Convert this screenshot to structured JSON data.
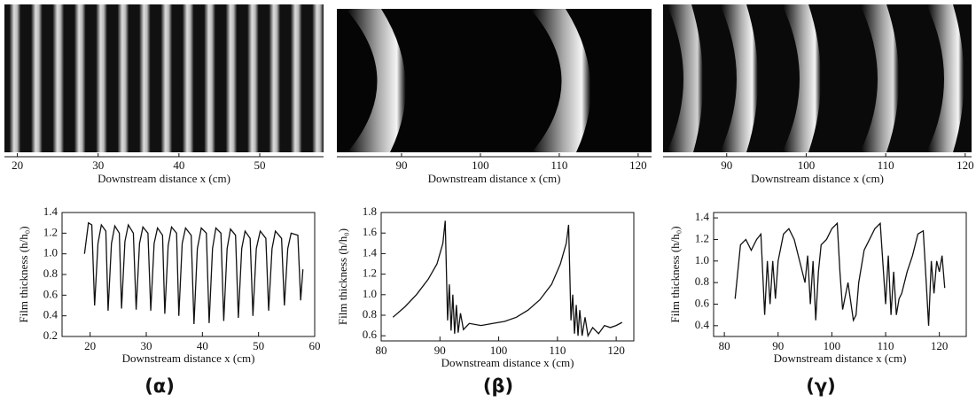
{
  "chart_data": [
    {
      "type": "image",
      "xlabel": "Downstream distance  x (cm)",
      "xlim": [
        18.4,
        57.9
      ],
      "xticks": [
        20,
        30,
        40,
        50
      ]
    },
    {
      "type": "image",
      "xlabel": "Downstream distance  x (cm)",
      "xlim": [
        81.8,
        121.7
      ],
      "xticks": [
        90,
        100,
        110,
        120
      ]
    },
    {
      "type": "image",
      "xlabel": "Downstream distance  x (cm)",
      "xlim": [
        82,
        120.8
      ],
      "xticks": [
        90,
        100,
        110,
        120
      ]
    },
    {
      "type": "line",
      "xlabel": "Downstream distance  x (cm)",
      "ylabel": "Film thickness (h/h₀)",
      "color": "#111111",
      "xlim": [
        15,
        60
      ],
      "xticks": [
        20,
        30,
        40,
        50,
        60
      ],
      "ylim": [
        0.2,
        1.4
      ],
      "yticks": [
        0.2,
        0.4,
        0.6,
        0.8,
        {
          "value": 1,
          "label": "1.0"
        },
        1.2,
        1.4
      ],
      "x": [
        19.0,
        19.7,
        20.3,
        20.8,
        21.4,
        22.0,
        22.8,
        23.2,
        23.8,
        24.4,
        25.2,
        25.6,
        26.2,
        26.8,
        27.7,
        28.2,
        28.8,
        29.4,
        30.3,
        30.8,
        31.4,
        32.0,
        32.9,
        33.3,
        33.9,
        34.5,
        35.4,
        35.8,
        36.4,
        37.0,
        38.0,
        38.5,
        39.1,
        39.8,
        40.7,
        41.2,
        41.8,
        42.4,
        43.3,
        43.8,
        44.4,
        45.0,
        45.9,
        46.4,
        47.0,
        47.6,
        48.5,
        49.0,
        49.6,
        50.3,
        51.3,
        51.8,
        52.4,
        53.0,
        54.1,
        54.6,
        55.2,
        55.8,
        57.0,
        57.5,
        57.9
      ],
      "values": [
        1.0,
        1.3,
        1.28,
        0.5,
        1.1,
        1.28,
        1.22,
        0.45,
        1.1,
        1.27,
        1.2,
        0.47,
        1.12,
        1.28,
        1.2,
        0.46,
        1.1,
        1.26,
        1.2,
        0.45,
        1.1,
        1.25,
        1.18,
        0.42,
        1.08,
        1.26,
        1.2,
        0.4,
        1.1,
        1.25,
        1.18,
        0.32,
        1.05,
        1.25,
        1.2,
        0.33,
        1.05,
        1.25,
        1.2,
        0.35,
        1.05,
        1.24,
        1.18,
        0.38,
        1.05,
        1.22,
        1.15,
        0.4,
        1.05,
        1.22,
        1.15,
        0.45,
        1.05,
        1.22,
        1.15,
        0.5,
        1.05,
        1.2,
        1.18,
        0.55,
        0.85
      ]
    },
    {
      "type": "line",
      "xlabel": "Downstream distance  x (cm)",
      "ylabel": "Film thickness (h/h₀)",
      "color": "#111111",
      "xlim": [
        80,
        123
      ],
      "xticks": [
        80,
        90,
        100,
        110,
        120
      ],
      "ylim": [
        0.55,
        1.8
      ],
      "yticks": [
        0.6,
        0.8,
        {
          "value": 1,
          "label": "1.0"
        },
        1.2,
        1.4,
        1.6,
        1.8
      ],
      "x": [
        82,
        84,
        86,
        88,
        89.5,
        90.5,
        90.9,
        91.3,
        91.6,
        91.9,
        92.2,
        92.5,
        92.8,
        93.1,
        93.5,
        94,
        95,
        97,
        99,
        101,
        103,
        105,
        107,
        109,
        110.5,
        111.5,
        111.9,
        112.3,
        112.6,
        112.9,
        113.2,
        113.5,
        113.8,
        114.2,
        114.7,
        115.2,
        116,
        117,
        118,
        119,
        120,
        121
      ],
      "values": [
        0.78,
        0.88,
        1.0,
        1.15,
        1.3,
        1.5,
        1.72,
        0.75,
        1.1,
        0.65,
        1.0,
        0.62,
        0.9,
        0.63,
        0.82,
        0.66,
        0.72,
        0.7,
        0.72,
        0.74,
        0.78,
        0.85,
        0.95,
        1.1,
        1.3,
        1.5,
        1.68,
        0.75,
        1.0,
        0.62,
        0.9,
        0.6,
        0.85,
        0.6,
        0.78,
        0.6,
        0.68,
        0.62,
        0.7,
        0.68,
        0.7,
        0.73
      ]
    },
    {
      "type": "line",
      "xlabel": "Downstream distance  x (cm)",
      "ylabel": "Film thickness (h/h₀)",
      "color": "#111111",
      "xlim": [
        78,
        125
      ],
      "xticks": [
        80,
        90,
        100,
        110,
        120
      ],
      "ylim": [
        0.3,
        1.45
      ],
      "yticks": [
        0.4,
        0.6,
        0.8,
        {
          "value": 1,
          "label": "1.0"
        },
        1.2,
        1.4
      ],
      "x": [
        82,
        83,
        84,
        85,
        86,
        86.8,
        87.5,
        88,
        88.5,
        89,
        89.5,
        90,
        91,
        92,
        93,
        94,
        95,
        95.5,
        96,
        96.5,
        97,
        97.5,
        98,
        99,
        100,
        101,
        101.5,
        102,
        103,
        104,
        104.5,
        105,
        106,
        107,
        108,
        109,
        110,
        110.5,
        111,
        111.5,
        112,
        112.5,
        113,
        114,
        115,
        116,
        117,
        117.5,
        118,
        118.5,
        119,
        119.5,
        120,
        120.5,
        121
      ],
      "values": [
        0.65,
        1.15,
        1.2,
        1.1,
        1.2,
        1.25,
        0.5,
        1.0,
        0.6,
        1.0,
        0.65,
        1.0,
        1.25,
        1.3,
        1.2,
        1.0,
        0.8,
        1.05,
        0.6,
        1.0,
        0.45,
        0.9,
        1.15,
        1.2,
        1.3,
        1.35,
        0.9,
        0.55,
        0.8,
        0.45,
        0.5,
        0.8,
        1.1,
        1.2,
        1.3,
        1.35,
        0.6,
        1.05,
        0.5,
        0.9,
        0.5,
        0.65,
        0.7,
        0.9,
        1.05,
        1.25,
        1.28,
        0.85,
        0.4,
        1.0,
        0.7,
        1.0,
        0.9,
        1.05,
        0.75
      ]
    }
  ],
  "panel_labels": [
    "(α)",
    "(β)",
    "(γ)"
  ]
}
